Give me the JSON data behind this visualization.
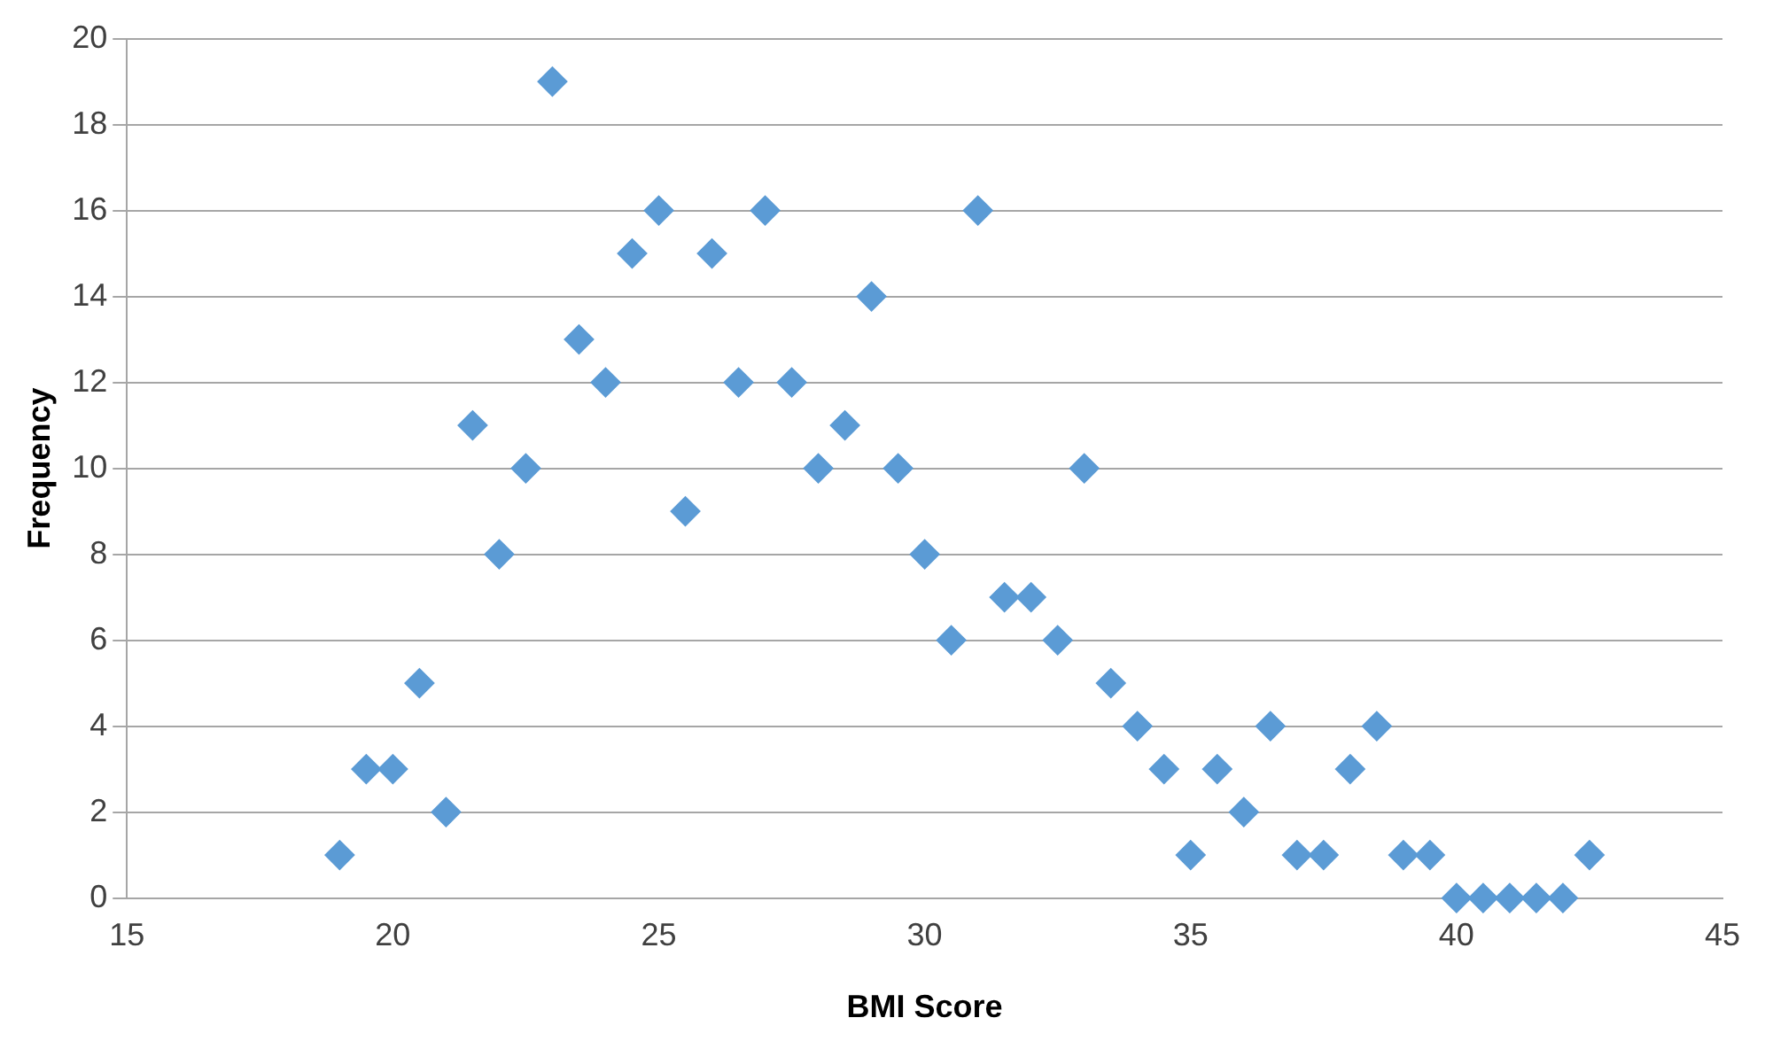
{
  "chart_data": {
    "type": "scatter",
    "xlabel": "BMI Score",
    "ylabel": "Frequency",
    "x": [
      19,
      19.5,
      20,
      20.5,
      21,
      21.5,
      22,
      22.5,
      23,
      23.5,
      24,
      24.5,
      25,
      25.5,
      26,
      26.5,
      27,
      27.5,
      28,
      28.5,
      29,
      29.5,
      30,
      30.5,
      31,
      31.5,
      32,
      32.5,
      33,
      33.5,
      34,
      34.5,
      35,
      35.5,
      36,
      36.5,
      37,
      37.5,
      38,
      38.5,
      39,
      39.5,
      40,
      40.5,
      41,
      41.5,
      42,
      42.5
    ],
    "series": [
      {
        "color": "#5b9bd5",
        "values": [
          1,
          3,
          3,
          5,
          2,
          11,
          8,
          10,
          19,
          13,
          12,
          15,
          16,
          9,
          15,
          12,
          16,
          12,
          10,
          11,
          14,
          10,
          8,
          6,
          16,
          7,
          7,
          6,
          10,
          5,
          4,
          3,
          1,
          3,
          2,
          4,
          1,
          1,
          3,
          4,
          1,
          1,
          0,
          0,
          0,
          0,
          0,
          1
        ]
      }
    ],
    "xlim": [
      15,
      45
    ],
    "xticks": [
      15,
      20,
      25,
      30,
      35,
      40,
      45
    ],
    "ylim": [
      0,
      20
    ],
    "yticks": [
      0,
      2,
      4,
      6,
      8,
      10,
      12,
      14,
      16,
      18,
      20
    ],
    "grid": "y",
    "legend": false,
    "marker": "diamond"
  }
}
